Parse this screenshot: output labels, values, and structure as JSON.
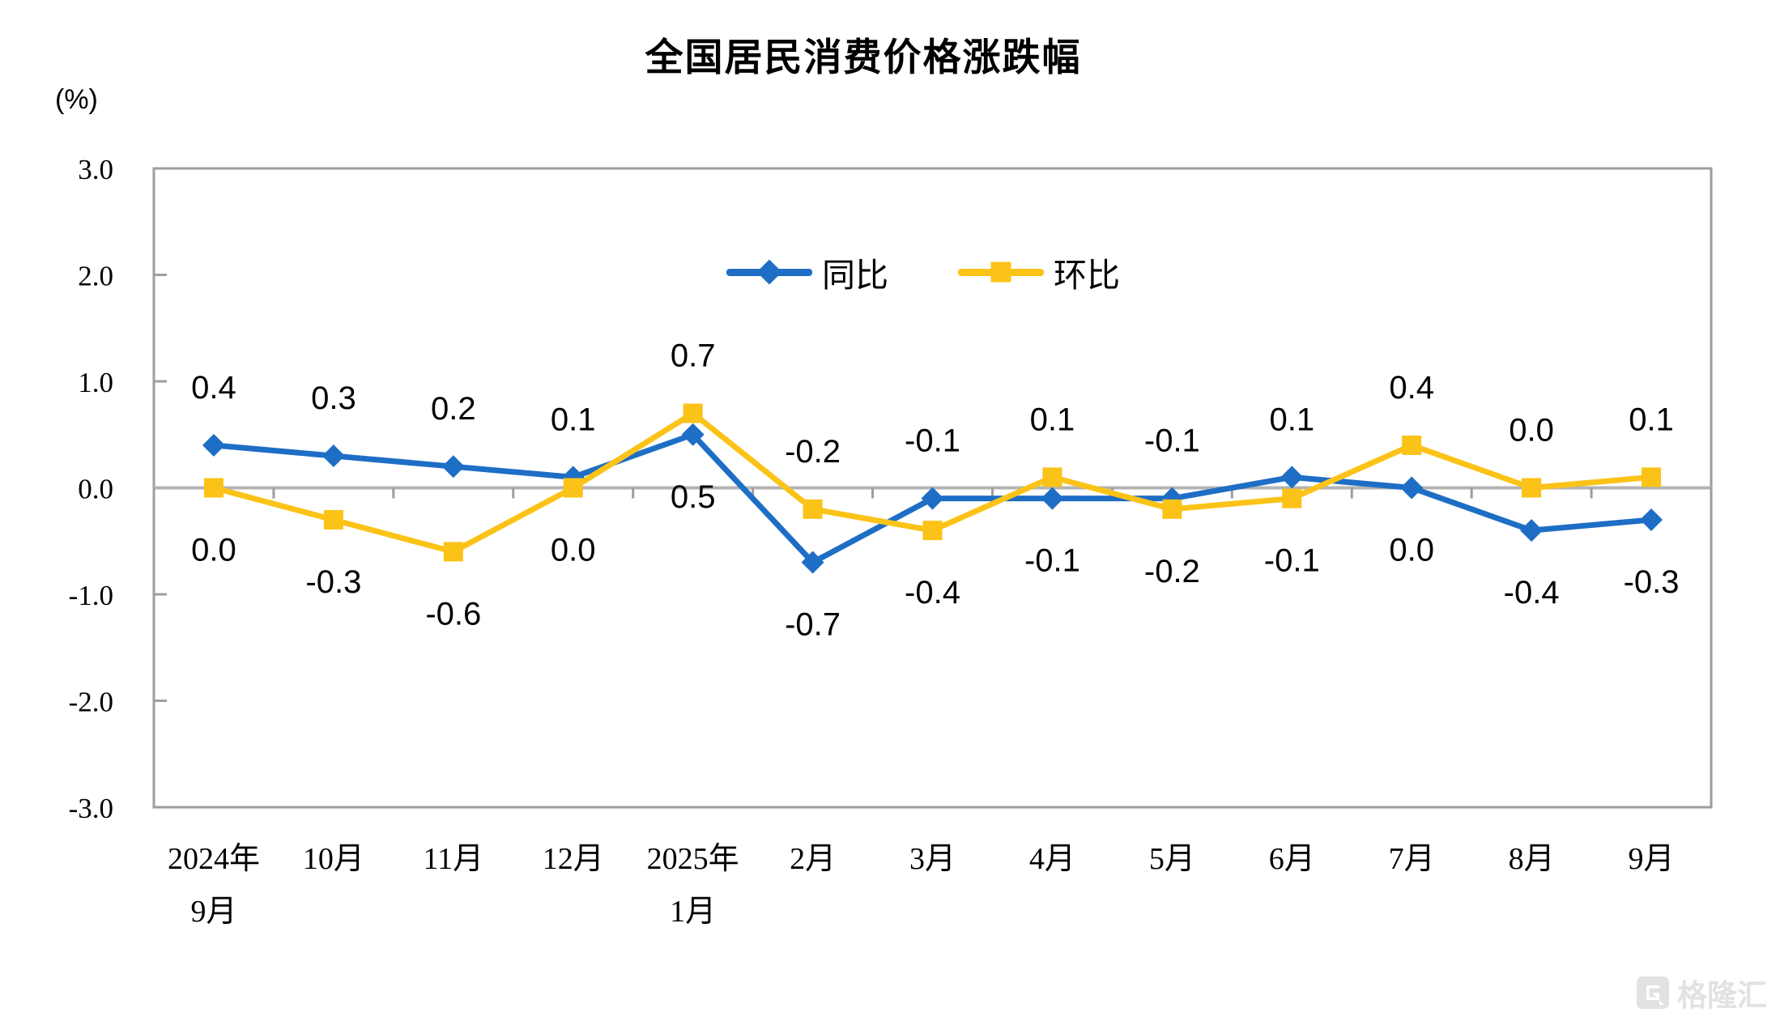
{
  "chart_data": {
    "type": "line",
    "title": "全国居民消费价格涨跌幅",
    "unit_label": "(%)",
    "categories": [
      [
        "2024年",
        "9月"
      ],
      [
        "10月"
      ],
      [
        "11月"
      ],
      [
        "12月"
      ],
      [
        "2025年",
        "1月"
      ],
      [
        "2月"
      ],
      [
        "3月"
      ],
      [
        "4月"
      ],
      [
        "5月"
      ],
      [
        "6月"
      ],
      [
        "7月"
      ],
      [
        "8月"
      ],
      [
        "9月"
      ]
    ],
    "series": [
      {
        "name": "同比",
        "marker": "diamond",
        "color": "#1e6ec6",
        "values": [
          0.4,
          0.3,
          0.2,
          0.1,
          0.5,
          -0.7,
          -0.1,
          -0.1,
          -0.1,
          0.1,
          0.0,
          -0.4,
          -0.3
        ]
      },
      {
        "name": "环比",
        "marker": "square",
        "color": "#fbc318",
        "values": [
          0.0,
          -0.3,
          -0.6,
          0.0,
          0.7,
          -0.2,
          -0.4,
          0.1,
          -0.2,
          -0.1,
          0.4,
          0.0,
          0.1
        ]
      }
    ],
    "y_ticks": [
      3.0,
      2.0,
      1.0,
      0.0,
      -1.0,
      -2.0,
      -3.0
    ],
    "ylim": [
      -3.0,
      3.0
    ],
    "grid": false,
    "legend_position": "top-center",
    "axis_color": "#9d9d9d",
    "zero_line_color": "#b3b3b3",
    "label_color": "#000000"
  },
  "watermark": {
    "text": "格隆汇",
    "logo_letter": "G"
  }
}
